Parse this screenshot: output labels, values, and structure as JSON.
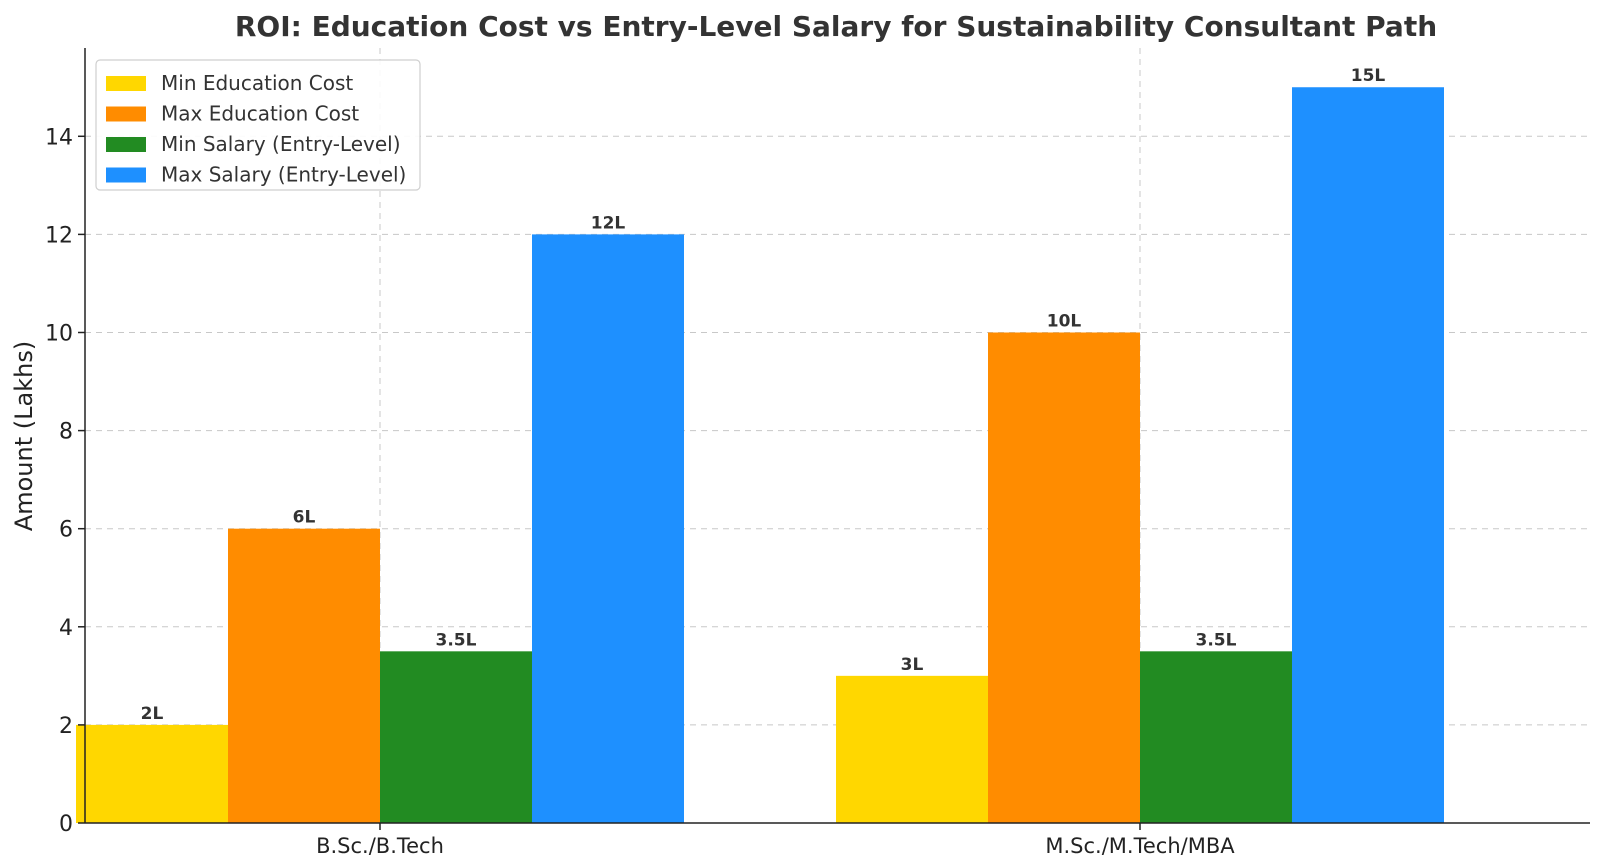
{
  "chart_data": {
    "type": "bar",
    "title": "ROI: Education Cost vs Entry-Level Salary for Sustainability Consultant Path",
    "xlabel": "",
    "ylabel": "Amount (Lakhs)",
    "ylim": [
      0,
      15.8
    ],
    "yticks": [
      0,
      2,
      4,
      6,
      8,
      10,
      12,
      14
    ],
    "grid": true,
    "legend_position": "top-left",
    "categories": [
      "B.Sc./B.Tech",
      "M.Sc./M.Tech/MBA"
    ],
    "series": [
      {
        "name": "Min Education Cost",
        "color": "#FFD700",
        "values": [
          2,
          3
        ],
        "labels": [
          "2L",
          "3L"
        ]
      },
      {
        "name": "Max Education Cost",
        "color": "#FF8C00",
        "values": [
          6,
          10
        ],
        "labels": [
          "6L",
          "10L"
        ]
      },
      {
        "name": "Min Salary (Entry-Level)",
        "color": "#228B22",
        "values": [
          3.5,
          3.5
        ],
        "labels": [
          "3.5L",
          "3.5L"
        ]
      },
      {
        "name": "Max Salary (Entry-Level)",
        "color": "#1E90FF",
        "values": [
          12,
          15
        ],
        "labels": [
          "12L",
          "15L"
        ]
      }
    ]
  }
}
